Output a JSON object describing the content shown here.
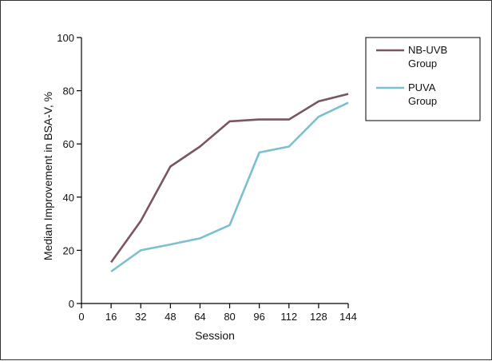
{
  "chart_data": {
    "type": "line",
    "xlabel": "Session",
    "ylabel": "Median Improvement in BSA-V, %",
    "xlim": [
      0,
      144
    ],
    "ylim": [
      0,
      100
    ],
    "xticks": [
      0,
      16,
      32,
      48,
      64,
      80,
      96,
      112,
      128,
      144
    ],
    "yticks": [
      0,
      20,
      40,
      60,
      80,
      100
    ],
    "grid": false,
    "legend_position": "top-right",
    "series": [
      {
        "name": "NB-UVB Group",
        "legend_lines": [
          "NB-UVB",
          "Group"
        ],
        "color": "#7a5562",
        "x": [
          16,
          32,
          48,
          64,
          80,
          96,
          112,
          128,
          144
        ],
        "y": [
          15.5,
          31,
          51.5,
          59,
          68.5,
          69.2,
          69.2,
          76,
          78.8
        ]
      },
      {
        "name": "PUVA Group",
        "legend_lines": [
          "PUVA",
          "Group"
        ],
        "color": "#7cbfcf",
        "x": [
          16,
          32,
          48,
          64,
          80,
          96,
          112,
          128,
          144
        ],
        "y": [
          12,
          20,
          22.2,
          24.5,
          29.5,
          56.8,
          59,
          70.2,
          75.5
        ]
      }
    ]
  }
}
